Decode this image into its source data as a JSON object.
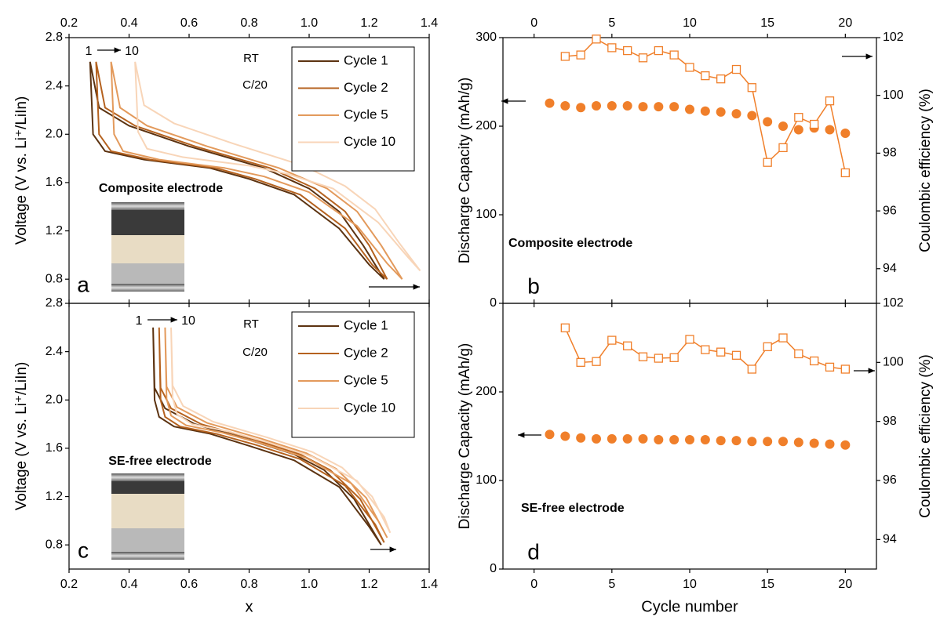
{
  "chart_data": [
    {
      "type": "line",
      "ylabel": "Voltage (V vs. Li⁺/LiIn)",
      "xlim": [
        0.2,
        1.4
      ],
      "xticks": [
        0.2,
        0.4,
        0.6,
        0.8,
        {
          "value": 1,
          "label": "1.0"
        },
        1.2,
        1.4
      ],
      "ylim": [
        0.6,
        2.8
      ],
      "yticks": [
        0.8,
        1.2,
        1.6,
        {
          "value": 2,
          "label": "2.0"
        },
        2.4,
        2.8
      ],
      "annotations": [
        "1",
        "10",
        "RT",
        "C/20",
        "Composite electrode",
        "a"
      ],
      "legend": "upper right",
      "series": [
        {
          "name": "Cycle 1",
          "color": "#5c3311",
          "x": [
            0.67,
            0.45,
            0.32,
            0.28,
            0.27,
            0.3,
            0.4,
            0.6,
            0.85,
            1.0,
            1.1,
            1.18,
            1.25,
            1.2,
            1.1,
            0.95,
            0.8,
            0.67
          ],
          "values": [
            1.72,
            1.79,
            1.86,
            2.0,
            2.6,
            2.22,
            2.07,
            1.9,
            1.72,
            1.55,
            1.36,
            1.08,
            0.8,
            0.92,
            1.22,
            1.5,
            1.63,
            1.72
          ]
        },
        {
          "name": "Cycle 2",
          "color": "#b5621f",
          "x": [
            0.69,
            0.47,
            0.34,
            0.3,
            0.29,
            0.32,
            0.42,
            0.62,
            0.87,
            1.02,
            1.12,
            1.2,
            1.26,
            1.21,
            1.12,
            0.97,
            0.82,
            0.69
          ],
          "values": [
            1.72,
            1.79,
            1.86,
            2.0,
            2.6,
            2.22,
            2.07,
            1.9,
            1.72,
            1.55,
            1.36,
            1.08,
            0.8,
            0.92,
            1.22,
            1.5,
            1.63,
            1.72
          ]
        },
        {
          "name": "Cycle 5",
          "color": "#e39a5c",
          "x": [
            0.72,
            0.5,
            0.38,
            0.35,
            0.34,
            0.37,
            0.46,
            0.66,
            0.9,
            1.06,
            1.16,
            1.24,
            1.31,
            1.26,
            1.16,
            1.0,
            0.85,
            0.72
          ],
          "values": [
            1.72,
            1.79,
            1.86,
            2.0,
            2.6,
            2.22,
            2.07,
            1.9,
            1.72,
            1.55,
            1.36,
            1.08,
            0.8,
            0.93,
            1.24,
            1.52,
            1.65,
            1.72
          ]
        },
        {
          "name": "Cycle 10",
          "color": "#f8d5b8",
          "x": [
            0.8,
            0.58,
            0.46,
            0.43,
            0.42,
            0.45,
            0.55,
            0.75,
            0.98,
            1.12,
            1.22,
            1.3,
            1.37,
            1.33,
            1.23,
            1.08,
            0.93,
            0.8
          ],
          "values": [
            1.74,
            1.81,
            1.88,
            2.02,
            2.6,
            2.24,
            2.09,
            1.92,
            1.74,
            1.57,
            1.38,
            1.1,
            0.87,
            0.98,
            1.27,
            1.55,
            1.67,
            1.74
          ]
        }
      ]
    },
    {
      "type": "scatter",
      "ylabel": "Discharge Capacity (mAh/g)",
      "y2label": "Coulombic efficiency (%)",
      "xlim": [
        -2,
        22
      ],
      "xticks": [
        0,
        5,
        10,
        15,
        20
      ],
      "ylim": [
        0,
        300
      ],
      "yticks": [
        0,
        100,
        200,
        300
      ],
      "y2lim": [
        92.8,
        102
      ],
      "y2ticks": [
        94,
        96,
        98,
        100,
        102
      ],
      "annotations": [
        "Composite electrode",
        "b"
      ],
      "x": [
        1,
        2,
        3,
        4,
        5,
        6,
        7,
        8,
        9,
        10,
        11,
        12,
        13,
        14,
        15,
        16,
        17,
        18,
        19,
        20
      ],
      "series": [
        {
          "color": "#f07f2a",
          "marker": "circle",
          "values": [
            226,
            223,
            221,
            223,
            223,
            223,
            222,
            222,
            222,
            219,
            217,
            216,
            214,
            212,
            205,
            200,
            196,
            198,
            196,
            192
          ]
        },
        {
          "color": "#f07f2a",
          "marker": "square",
          "line": true,
          "axis": "y2",
          "values": [
            null,
            101.35,
            101.4,
            101.95,
            101.65,
            101.55,
            101.3,
            101.55,
            101.4,
            100.97,
            100.68,
            100.57,
            100.9,
            100.27,
            97.68,
            98.19,
            99.24,
            99.0,
            99.81,
            97.32
          ]
        }
      ]
    },
    {
      "type": "line",
      "ylabel": "Voltage (V vs. Li⁺/LiIn)",
      "xlabel": "x",
      "xlim": [
        0.2,
        1.4
      ],
      "xticks": [
        0.2,
        0.4,
        0.6,
        0.8,
        {
          "value": 1,
          "label": "1.0"
        },
        1.2,
        1.4
      ],
      "ylim": [
        0.6,
        2.8
      ],
      "yticks": [
        0.8,
        1.2,
        1.6,
        {
          "value": 2,
          "label": "2.0"
        },
        2.4,
        2.8
      ],
      "annotations": [
        "1",
        "10",
        "RT",
        "C/20",
        "SE-free electrode",
        "c"
      ],
      "legend": "upper right",
      "series": [
        {
          "name": "Cycle 1",
          "color": "#5c3311",
          "x": [
            0.67,
            0.55,
            0.5,
            0.485,
            0.48,
            0.485,
            0.52,
            0.62,
            0.8,
            0.95,
            1.05,
            1.15,
            1.24,
            1.2,
            1.1,
            0.95,
            0.8,
            0.67
          ],
          "values": [
            1.72,
            1.78,
            1.86,
            2.0,
            2.6,
            2.1,
            1.93,
            1.8,
            1.67,
            1.55,
            1.42,
            1.18,
            0.8,
            0.95,
            1.28,
            1.5,
            1.62,
            1.72
          ]
        },
        {
          "name": "Cycle 2",
          "color": "#b5621f",
          "x": [
            0.69,
            0.57,
            0.52,
            0.505,
            0.5,
            0.505,
            0.54,
            0.64,
            0.82,
            0.97,
            1.07,
            1.17,
            1.25,
            1.22,
            1.12,
            0.97,
            0.82,
            0.69
          ],
          "values": [
            1.72,
            1.78,
            1.86,
            2.0,
            2.6,
            2.1,
            1.93,
            1.8,
            1.67,
            1.55,
            1.42,
            1.18,
            0.82,
            0.97,
            1.29,
            1.51,
            1.63,
            1.72
          ]
        },
        {
          "name": "Cycle 5",
          "color": "#e39a5c",
          "x": [
            0.71,
            0.59,
            0.54,
            0.525,
            0.52,
            0.525,
            0.56,
            0.66,
            0.84,
            0.99,
            1.09,
            1.19,
            1.26,
            1.23,
            1.14,
            0.99,
            0.84,
            0.71
          ],
          "values": [
            1.73,
            1.79,
            1.87,
            2.01,
            2.6,
            2.11,
            1.94,
            1.81,
            1.68,
            1.56,
            1.43,
            1.19,
            0.86,
            1.0,
            1.31,
            1.52,
            1.64,
            1.73
          ]
        },
        {
          "name": "Cycle 10",
          "color": "#f8d5b8",
          "x": [
            0.73,
            0.61,
            0.56,
            0.545,
            0.54,
            0.545,
            0.58,
            0.68,
            0.86,
            1.01,
            1.11,
            1.21,
            1.27,
            1.25,
            1.16,
            1.01,
            0.86,
            0.73
          ],
          "values": [
            1.74,
            1.8,
            1.88,
            2.02,
            2.6,
            2.12,
            1.95,
            1.82,
            1.69,
            1.57,
            1.44,
            1.2,
            0.9,
            1.03,
            1.33,
            1.53,
            1.65,
            1.74
          ]
        }
      ]
    },
    {
      "type": "scatter",
      "ylabel": "Discharge Capacity (mAh/g)",
      "y2label": "Coulombic efficiency (%)",
      "xlabel": "Cycle number",
      "xlim": [
        -2,
        22
      ],
      "xticks": [
        0,
        5,
        10,
        15,
        20
      ],
      "ylim": [
        0,
        300
      ],
      "yticks": [
        0,
        100,
        200
      ],
      "y2lim": [
        93,
        102
      ],
      "y2ticks": [
        94,
        96,
        98,
        100,
        102
      ],
      "annotations": [
        "SE-free electrode",
        "d"
      ],
      "x": [
        1,
        2,
        3,
        4,
        5,
        6,
        7,
        8,
        9,
        10,
        11,
        12,
        13,
        14,
        15,
        16,
        17,
        18,
        19,
        20
      ],
      "series": [
        {
          "color": "#f07f2a",
          "marker": "circle",
          "values": [
            152,
            150,
            148,
            147,
            147,
            147,
            147,
            146,
            146,
            146,
            146,
            145,
            145,
            144,
            144,
            144,
            143,
            142,
            141,
            140
          ]
        },
        {
          "color": "#f07f2a",
          "marker": "square",
          "line": true,
          "axis": "y2",
          "values": [
            null,
            101.17,
            100.0,
            100.03,
            100.75,
            100.56,
            100.19,
            100.14,
            100.16,
            100.78,
            100.43,
            100.35,
            100.24,
            99.77,
            100.53,
            100.83,
            100.29,
            100.05,
            99.84,
            99.77
          ]
        }
      ]
    }
  ]
}
